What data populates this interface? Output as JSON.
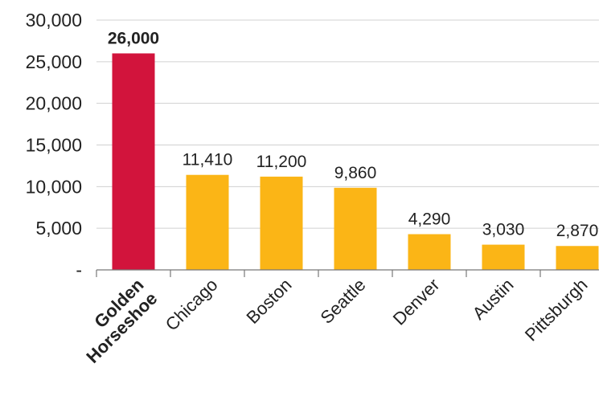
{
  "chart_data": {
    "type": "bar",
    "categories": [
      "Golden Horseshoe",
      "Chicago",
      "Boston",
      "Seattle",
      "Denver",
      "Austin",
      "Pittsburgh"
    ],
    "category_lines": [
      [
        "Golden",
        "Horseshoe"
      ],
      [
        "Chicago"
      ],
      [
        "Boston"
      ],
      [
        "Seattle"
      ],
      [
        "Denver"
      ],
      [
        "Austin"
      ],
      [
        "Pittsburgh"
      ]
    ],
    "values": [
      26000,
      11410,
      11200,
      9860,
      4290,
      3030,
      2870
    ],
    "value_labels": [
      "26,000",
      "11,410",
      "11,200",
      "9,860",
      "4,290",
      "3,030",
      "2,870"
    ],
    "highlight_index": 0,
    "colors": {
      "highlight": "#D2143C",
      "default": "#FBB516"
    },
    "ylim": [
      0,
      30000
    ],
    "yticks": [
      0,
      5000,
      10000,
      15000,
      20000,
      25000,
      30000
    ],
    "ytick_labels": [
      "-",
      "5,000",
      "10,000",
      "15,000",
      "20,000",
      "25,000",
      "30,000"
    ],
    "grid": true,
    "title": "",
    "xlabel": "",
    "ylabel": ""
  }
}
